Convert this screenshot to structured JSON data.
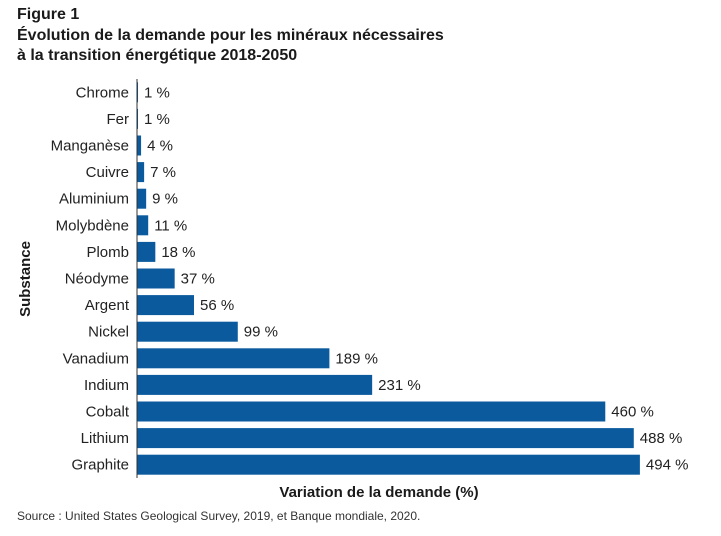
{
  "figure_label": "Figure 1",
  "title_line1": "Évolution de la demande pour les minéraux nécessaires",
  "title_line2": "à la transition énergétique 2018-2050",
  "source": "Source : United States Geological Survey, 2019, et Banque mondiale, 2020.",
  "colors": {
    "bar": "#0b5a9e",
    "axis": "#333333",
    "text": "#222222"
  },
  "chart_data": {
    "type": "bar",
    "orientation": "horizontal",
    "title": "Évolution de la demande pour les minéraux nécessaires à la transition énergétique 2018-2050",
    "xlabel": "Variation de la demande (%)",
    "ylabel": "Substance",
    "xlim": [
      0,
      500
    ],
    "grid": false,
    "value_suffix": " %",
    "categories": [
      "Chrome",
      "Fer",
      "Manganèse",
      "Cuivre",
      "Aluminium",
      "Molybdène",
      "Plomb",
      "Néodyme",
      "Argent",
      "Nickel",
      "Vanadium",
      "Indium",
      "Cobalt",
      "Lithium",
      "Graphite"
    ],
    "values": [
      1,
      1,
      4,
      7,
      9,
      11,
      18,
      37,
      56,
      99,
      189,
      231,
      460,
      488,
      494
    ],
    "data_labels": [
      "1 %",
      "1 %",
      "4 %",
      "7 %",
      "9 %",
      "11 %",
      "18 %",
      "37 %",
      "56 %",
      "99 %",
      "189 %",
      "231 %",
      "460 %",
      "488 %",
      "494 %"
    ]
  }
}
